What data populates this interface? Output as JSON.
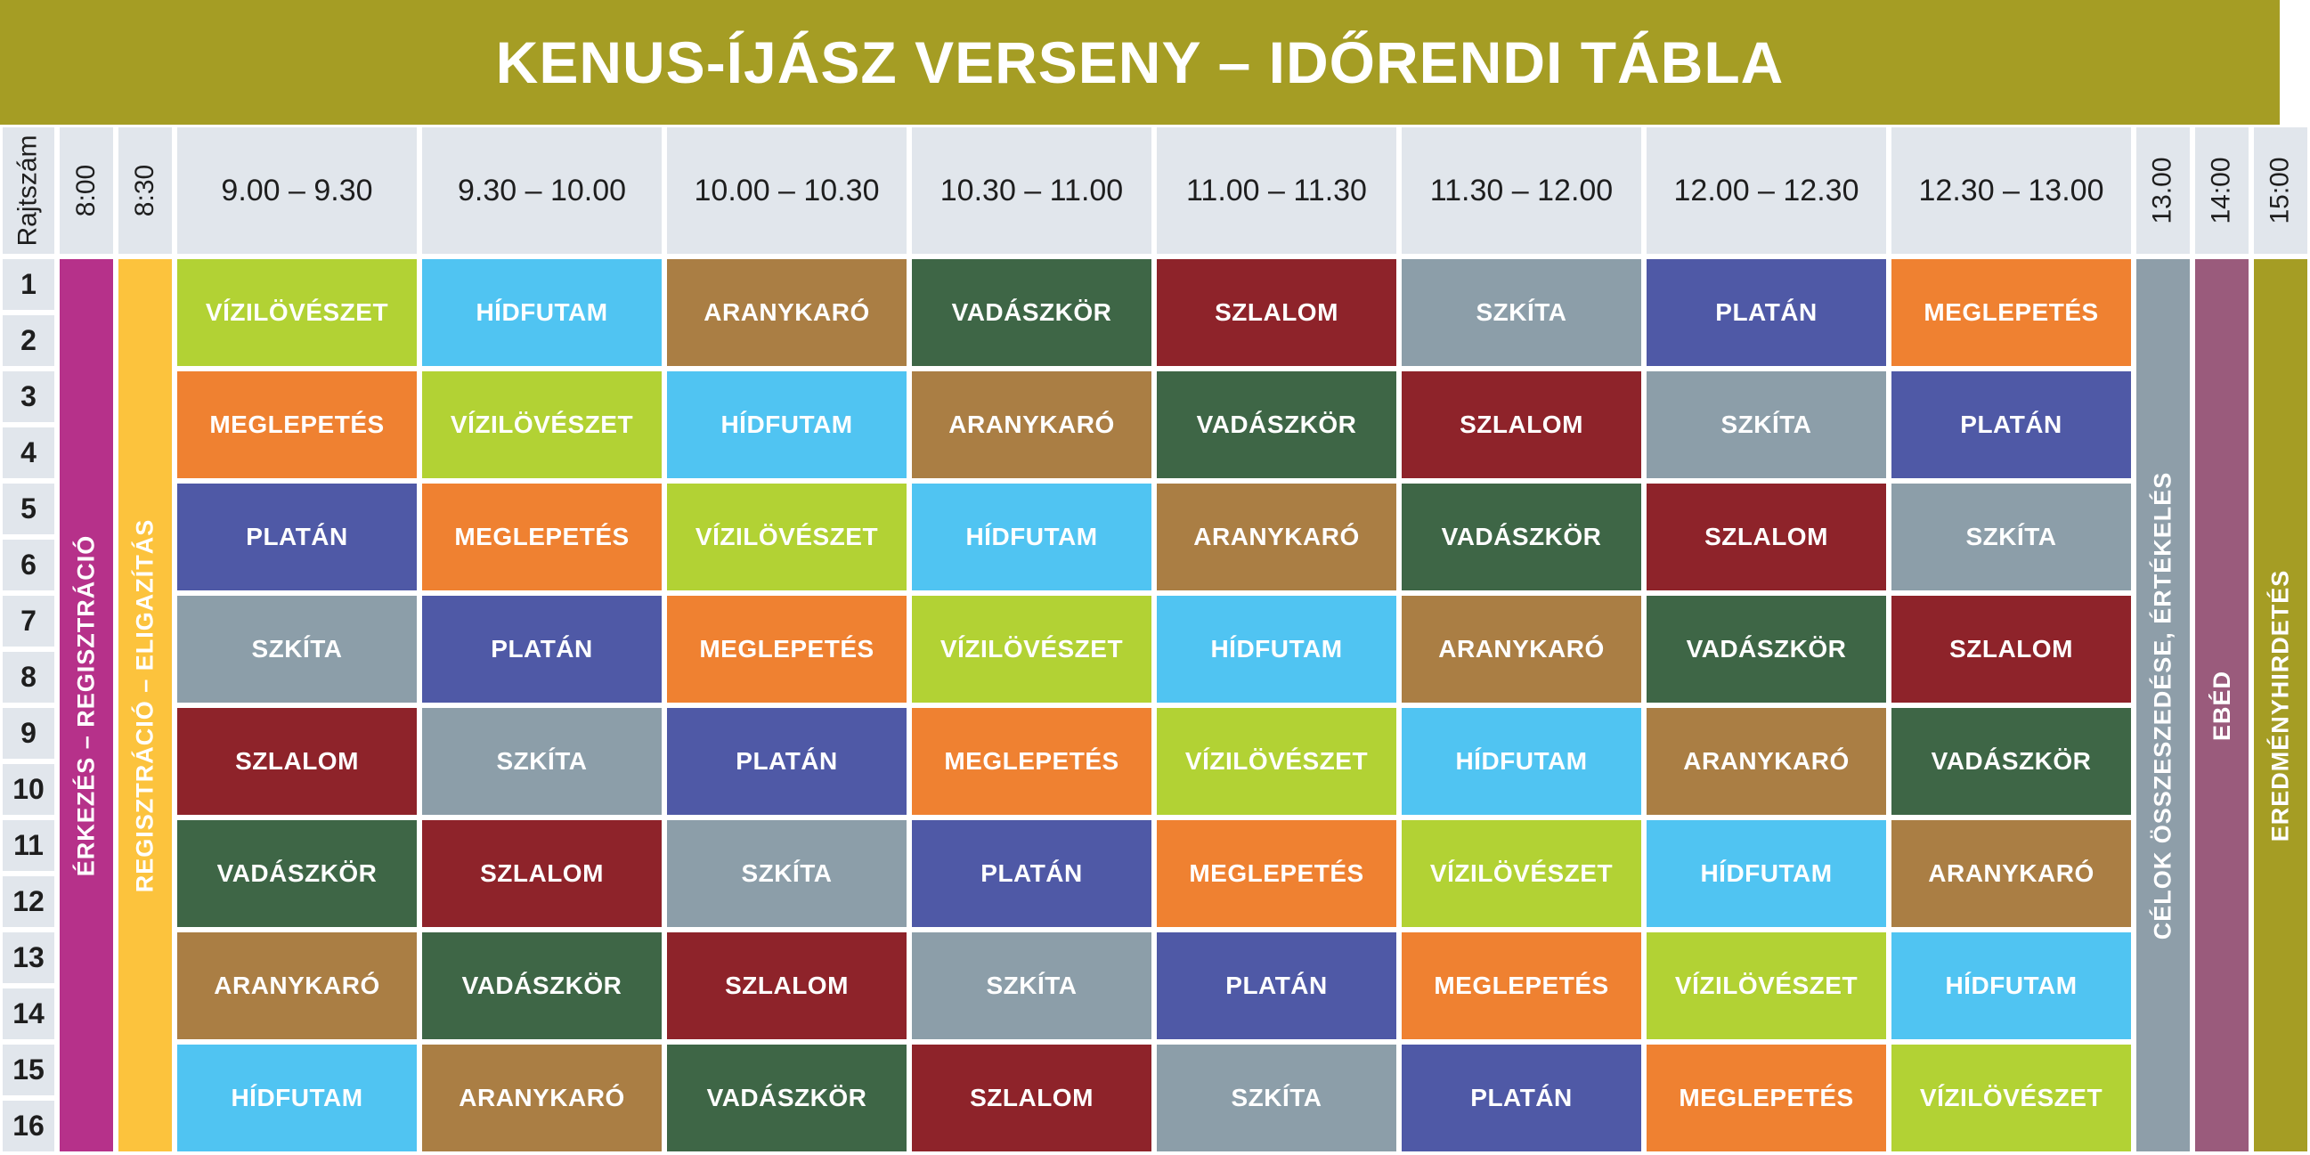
{
  "title": "KENUS-ÍJÁSZ VERSENY – IDŐRENDI TÁBLA",
  "header": {
    "rajtszam": "Rajtszám",
    "t0800": "8:00",
    "t0830": "8:30",
    "slots": [
      "9.00 – 9.30",
      "9.30 – 10.00",
      "10.00 – 10.30",
      "10.30 – 11.00",
      "11.00 – 11.30",
      "11.30 – 12.00",
      "12.00 – 12.30",
      "12.30 – 13.00"
    ],
    "t1300": "13.00",
    "t1400": "14:00",
    "t1500": "15:00"
  },
  "rows": [
    "1",
    "2",
    "3",
    "4",
    "5",
    "6",
    "7",
    "8",
    "9",
    "10",
    "11",
    "12",
    "13",
    "14",
    "15",
    "16"
  ],
  "bands": {
    "erkezes": "ÉRKEZÉS – REGISZTRÁCIÓ",
    "regisztracio": "REGISZTRÁCIÓ – ELIGAZÍTÁS",
    "celok": "CÉLOK ÖSSZESZEDÉSE, ÉRTÉKELÉS",
    "ebed": "EBÉD",
    "eredmeny": "EREDMÉNYHIRDETÉS"
  },
  "activities": [
    "VÍZILÖVÉSZET",
    "HÍDFUTAM",
    "ARANYKARÓ",
    "VADÁSZKÖR",
    "SZLALOM",
    "SZKÍTA",
    "PLATÁN",
    "MEGLEPETÉS"
  ],
  "schedule": [
    [
      "VÍZILÖVÉSZET",
      "HÍDFUTAM",
      "ARANYKARÓ",
      "VADÁSZKÖR",
      "SZLALOM",
      "SZKÍTA",
      "PLATÁN",
      "MEGLEPETÉS"
    ],
    [
      "MEGLEPETÉS",
      "VÍZILÖVÉSZET",
      "HÍDFUTAM",
      "ARANYKARÓ",
      "VADÁSZKÖR",
      "SZLALOM",
      "SZKÍTA",
      "PLATÁN"
    ],
    [
      "PLATÁN",
      "MEGLEPETÉS",
      "VÍZILÖVÉSZET",
      "HÍDFUTAM",
      "ARANYKARÓ",
      "VADÁSZKÖR",
      "SZLALOM",
      "SZKÍTA"
    ],
    [
      "SZKÍTA",
      "PLATÁN",
      "MEGLEPETÉS",
      "VÍZILÖVÉSZET",
      "HÍDFUTAM",
      "ARANYKARÓ",
      "VADÁSZKÖR",
      "SZLALOM"
    ],
    [
      "SZLALOM",
      "SZKÍTA",
      "PLATÁN",
      "MEGLEPETÉS",
      "VÍZILÖVÉSZET",
      "HÍDFUTAM",
      "ARANYKARÓ",
      "VADÁSZKÖR"
    ],
    [
      "VADÁSZKÖR",
      "SZLALOM",
      "SZKÍTA",
      "PLATÁN",
      "MEGLEPETÉS",
      "VÍZILÖVÉSZET",
      "HÍDFUTAM",
      "ARANYKARÓ"
    ],
    [
      "ARANYKARÓ",
      "VADÁSZKÖR",
      "SZLALOM",
      "SZKÍTA",
      "PLATÁN",
      "MEGLEPETÉS",
      "VÍZILÖVÉSZET",
      "HÍDFUTAM"
    ],
    [
      "HÍDFUTAM",
      "ARANYKARÓ",
      "VADÁSZKÖR",
      "SZLALOM",
      "SZKÍTA",
      "PLATÁN",
      "MEGLEPETÉS",
      "VÍZILÖVÉSZET"
    ]
  ],
  "colors": {
    "title_bg": "#a59d24",
    "header_bg": "#e1e6ec",
    "erkezes": "#b6318a",
    "regisztracio": "#fcc33d",
    "celok": "#8e9ea9",
    "ebed": "#9a5b7c",
    "eredmeny": "#a59d24",
    "VÍZILÖVÉSZET": "#b2d234",
    "HÍDFUTAM": "#50c4f2",
    "ARANYKARÓ": "#aa7e44",
    "VADÁSZKÖR": "#3e6646",
    "SZLALOM": "#8e232a",
    "SZKÍTA": "#8c9ea9",
    "PLATÁN": "#4f59a6",
    "MEGLEPETÉS": "#ef8131"
  }
}
